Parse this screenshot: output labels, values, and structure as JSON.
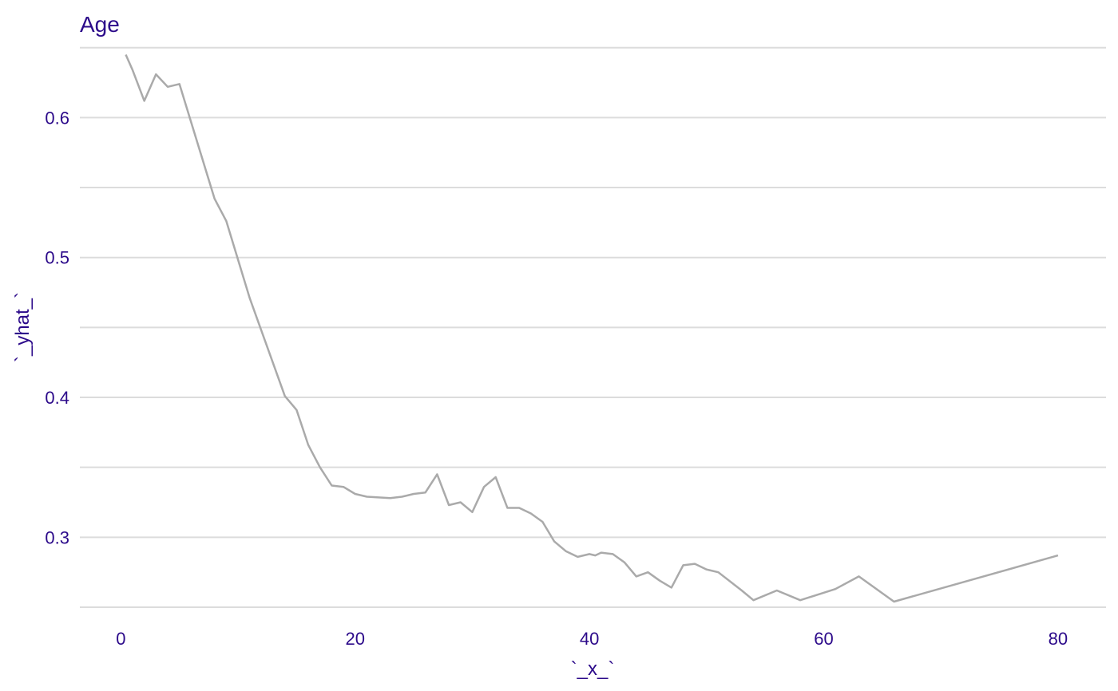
{
  "chart_data": {
    "type": "line",
    "title": "Age",
    "xlabel": "`_x_`",
    "ylabel": "`_yhat_`",
    "xlim": [
      -3.5,
      84.1
    ],
    "ylim": [
      0.246,
      0.651
    ],
    "x_ticks": [
      0,
      20,
      40,
      60,
      80
    ],
    "y_ticks": [
      0.3,
      0.4,
      0.5,
      0.6
    ],
    "y_tick_labels": [
      "0.3",
      "0.4",
      "0.5",
      "0.6"
    ],
    "y_minor_gridlines": [
      0.25,
      0.35,
      0.45,
      0.55,
      0.65
    ],
    "grid": "horizontal",
    "line_color": "#aaaaaa",
    "text_color": "#2c0a8a",
    "series": [
      {
        "x": [
          0.42,
          1,
          2,
          3,
          4,
          5,
          8,
          9,
          11,
          14,
          15,
          16,
          17,
          18,
          19,
          20,
          21,
          23,
          24,
          25,
          26,
          27,
          28,
          29,
          30,
          31,
          32,
          33,
          34,
          35,
          36,
          37,
          38,
          39,
          40,
          40.5,
          41,
          42,
          43,
          44,
          45,
          46,
          47,
          48,
          49,
          50,
          51,
          53,
          54,
          56,
          58,
          61,
          63,
          66,
          80
        ],
        "y": [
          0.645,
          0.634,
          0.612,
          0.631,
          0.622,
          0.624,
          0.542,
          0.526,
          0.471,
          0.401,
          0.391,
          0.366,
          0.35,
          0.337,
          0.336,
          0.331,
          0.329,
          0.328,
          0.329,
          0.331,
          0.332,
          0.345,
          0.323,
          0.325,
          0.318,
          0.336,
          0.343,
          0.321,
          0.321,
          0.317,
          0.311,
          0.297,
          0.29,
          0.286,
          0.288,
          0.287,
          0.289,
          0.288,
          0.282,
          0.272,
          0.275,
          0.269,
          0.264,
          0.28,
          0.281,
          0.277,
          0.275,
          0.262,
          0.255,
          0.262,
          0.255,
          0.263,
          0.272,
          0.254,
          0.287
        ]
      }
    ]
  }
}
